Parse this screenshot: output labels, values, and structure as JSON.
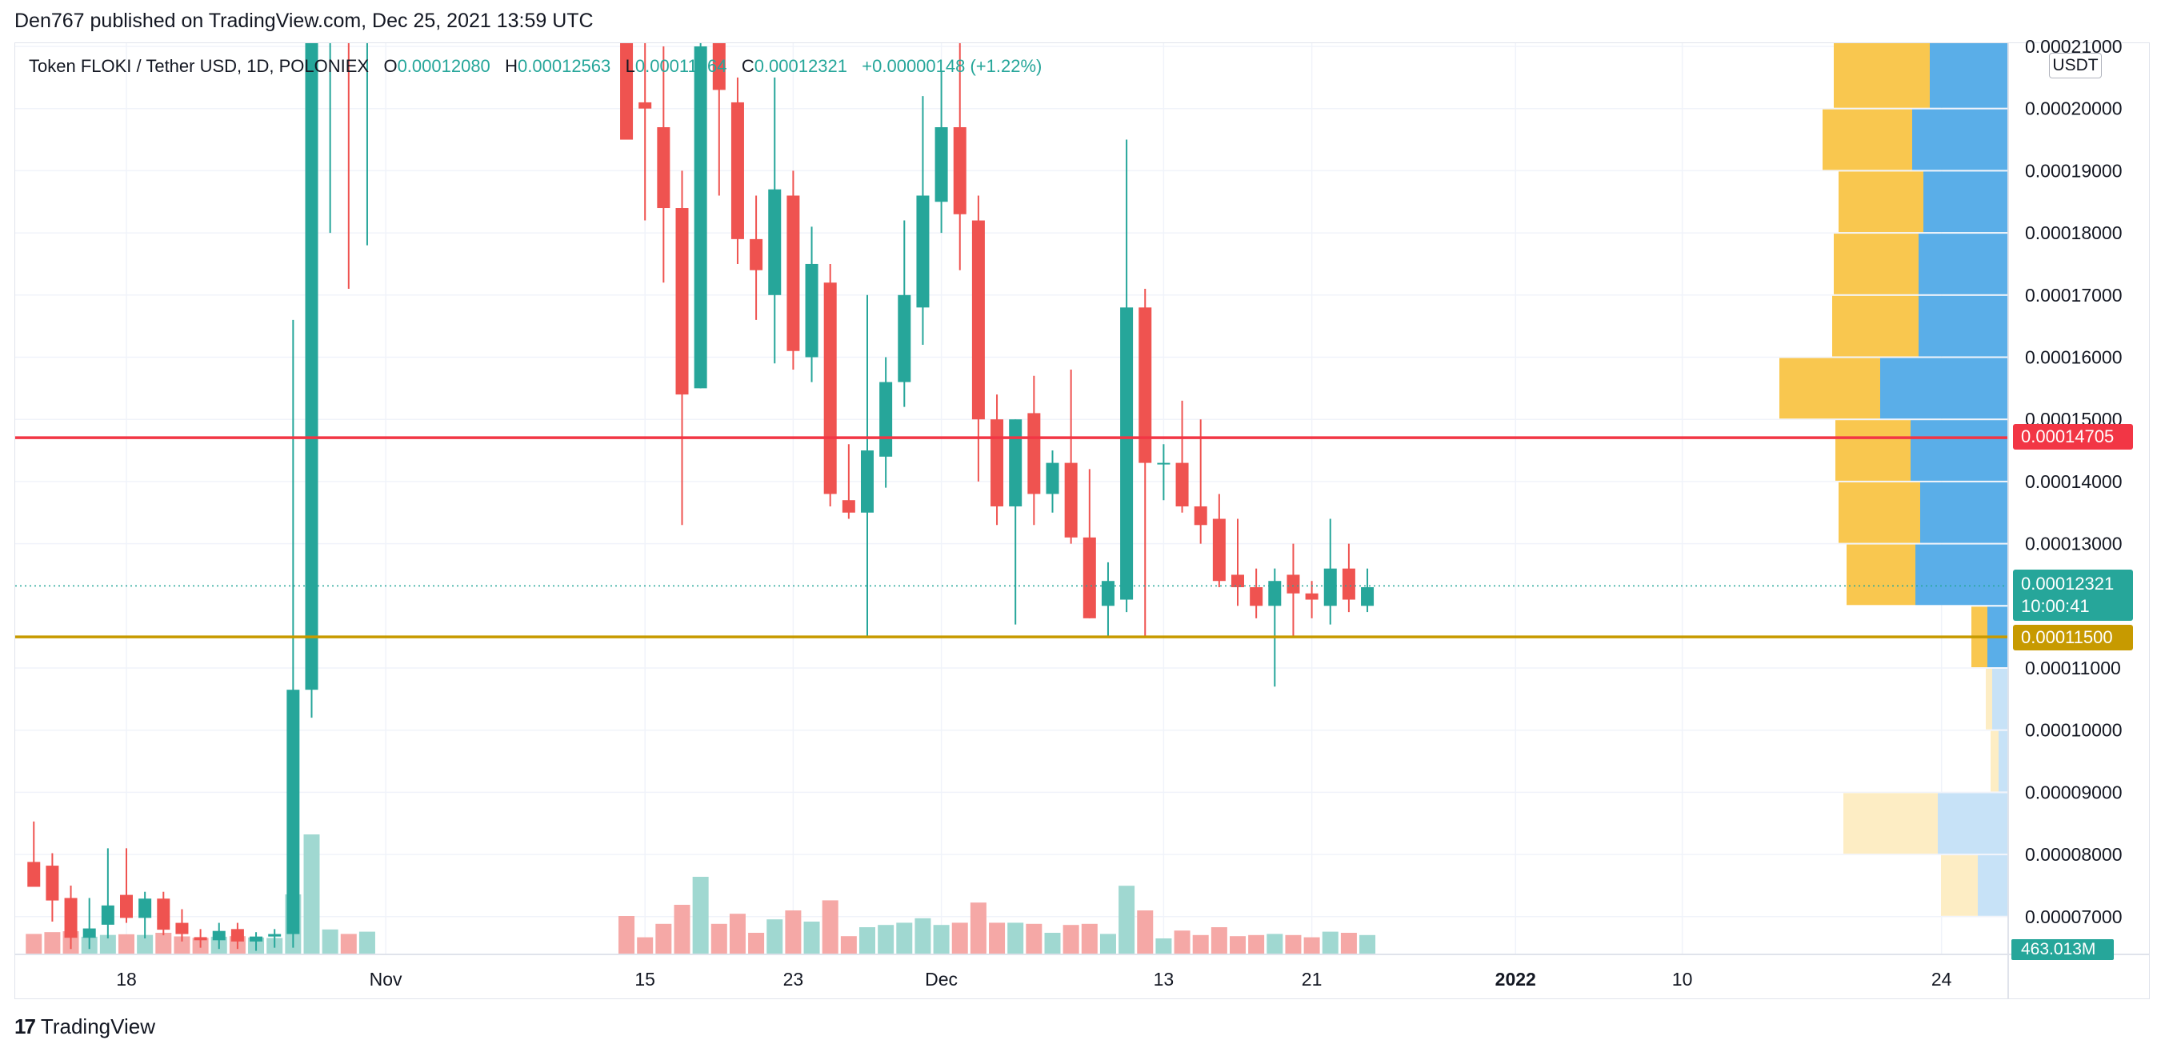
{
  "publisher": "Den767 published on TradingView.com, Dec 25, 2021 13:59 UTC",
  "brand": {
    "logo": "17",
    "name": "TradingView"
  },
  "legend": {
    "symbol": "Token FLOKI / Tether USD, 1D, POLONIEX",
    "o_label": "O",
    "o": "0.00012080",
    "h_label": "H",
    "h": "0.00012563",
    "l_label": "L",
    "l": "0.00011864",
    "c_label": "C",
    "c": "0.00012321",
    "change": "+0.00000148 (+1.22%)"
  },
  "colors": {
    "up": "#26a69a",
    "down": "#ef5350",
    "red_line": "#f23645",
    "orange_line": "#c79a00",
    "vp_up": "#f9c74f",
    "vp_down": "#5aaee8"
  },
  "price_tags": {
    "current_price": "0.00012321",
    "countdown": "10:00:41",
    "red_level": "0.00014705",
    "orange_level": "0.00011500",
    "volume": "463.013M",
    "currency": "USDT"
  },
  "chart_data": {
    "type": "candlestick",
    "title": "",
    "y_axis_labels": [
      "0.00021000",
      "0.00020000",
      "0.00019000",
      "0.00018000",
      "0.00017000",
      "0.00016000",
      "0.00015000",
      "0.00014000",
      "0.00013000",
      "0.00011000",
      "0.00010000",
      "0.00009000",
      "0.00008000",
      "0.00007000"
    ],
    "y_axis_values": [
      0.00021,
      0.0002,
      0.00019,
      0.00018,
      0.00017,
      0.00016,
      0.00015,
      0.00014,
      0.00013,
      0.00011,
      0.0001,
      9e-05,
      8e-05,
      7e-05
    ],
    "ylim": [
      6.44e-05,
      0.00021
    ],
    "x_axis_labels": [
      {
        "label": "18",
        "day": 0
      },
      {
        "label": "Nov",
        "day": 14
      },
      {
        "label": "15",
        "day": 28
      },
      {
        "label": "23",
        "day": 36
      },
      {
        "label": "Dec",
        "day": 44
      },
      {
        "label": "13",
        "day": 56
      },
      {
        "label": "21",
        "day": 64
      },
      {
        "label": "2022",
        "day": 75
      },
      {
        "label": "10",
        "day": 84
      },
      {
        "label": "24",
        "day": 98
      }
    ],
    "horizontal_lines": [
      {
        "value": 0.00014705,
        "color": "#f23645"
      },
      {
        "value": 0.000115,
        "color": "#c79a00"
      },
      {
        "value": 0.00012321,
        "color": "#26a69a",
        "dotted": true
      }
    ],
    "candles": [
      {
        "d": -5,
        "o": 7.88e-05,
        "h": 8.53e-05,
        "l": 7.62e-05,
        "c": 7.48e-05
      },
      {
        "d": -4,
        "o": 7.82e-05,
        "h": 8.02e-05,
        "l": 6.92e-05,
        "c": 7.26e-05
      },
      {
        "d": -3,
        "o": 7.3e-05,
        "h": 7.5e-05,
        "l": 6.48e-05,
        "c": 6.66e-05
      },
      {
        "d": -2,
        "o": 6.66e-05,
        "h": 7.3e-05,
        "l": 6.48e-05,
        "c": 6.81e-05
      },
      {
        "d": -1,
        "o": 6.87e-05,
        "h": 8.1e-05,
        "l": 6.65e-05,
        "c": 7.18e-05
      },
      {
        "d": 0,
        "o": 7.35e-05,
        "h": 8.1e-05,
        "l": 6.9e-05,
        "c": 6.98e-05
      },
      {
        "d": 1,
        "o": 6.98e-05,
        "h": 7.4e-05,
        "l": 6.65e-05,
        "c": 7.29e-05
      },
      {
        "d": 2,
        "o": 7.29e-05,
        "h": 7.4e-05,
        "l": 6.7e-05,
        "c": 6.79e-05
      },
      {
        "d": 3,
        "o": 6.9e-05,
        "h": 7.12e-05,
        "l": 6.6e-05,
        "c": 6.72e-05
      },
      {
        "d": 4,
        "o": 6.67e-05,
        "h": 6.8e-05,
        "l": 6.5e-05,
        "c": 6.62e-05
      },
      {
        "d": 5,
        "o": 6.62e-05,
        "h": 6.9e-05,
        "l": 6.48e-05,
        "c": 6.77e-05
      },
      {
        "d": 6,
        "o": 6.8e-05,
        "h": 6.9e-05,
        "l": 6.48e-05,
        "c": 6.6e-05
      },
      {
        "d": 7,
        "o": 6.6e-05,
        "h": 6.75e-05,
        "l": 6.45e-05,
        "c": 6.68e-05
      },
      {
        "d": 8,
        "o": 6.68e-05,
        "h": 6.8e-05,
        "l": 6.5e-05,
        "c": 6.72e-05
      },
      {
        "d": 9,
        "o": 6.72e-05,
        "h": 0.000166,
        "l": 6.5e-05,
        "c": 0.0001065
      },
      {
        "d": 10,
        "o": 0.0001065,
        "h": 0.00023,
        "l": 0.000102,
        "c": 0.000219
      },
      {
        "d": 11,
        "o": 0.000214,
        "h": 0.000226,
        "l": 0.00018,
        "c": 0.000222
      },
      {
        "d": 12,
        "o": 0.000222,
        "h": 0.000228,
        "l": 0.000171,
        "c": 0.000218
      },
      {
        "d": 13,
        "o": 0.000212,
        "h": 0.000226,
        "l": 0.000178,
        "c": 0.000218
      },
      {
        "d": 27,
        "o": 0.000215,
        "h": 0.000225,
        "l": 0.000195,
        "c": 0.000195
      },
      {
        "d": 28,
        "o": 0.000201,
        "h": 0.000214,
        "l": 0.000182,
        "c": 0.0002
      },
      {
        "d": 29,
        "o": 0.000197,
        "h": 0.00021,
        "l": 0.000172,
        "c": 0.000184
      },
      {
        "d": 30,
        "o": 0.000184,
        "h": 0.00019,
        "l": 0.000133,
        "c": 0.000154
      },
      {
        "d": 31,
        "o": 0.000155,
        "h": 0.000212,
        "l": 0.000155,
        "c": 0.00021
      },
      {
        "d": 32,
        "o": 0.000216,
        "h": 0.00022,
        "l": 0.000186,
        "c": 0.000203
      },
      {
        "d": 33,
        "o": 0.000201,
        "h": 0.000205,
        "l": 0.000175,
        "c": 0.000179
      },
      {
        "d": 34,
        "o": 0.000179,
        "h": 0.000186,
        "l": 0.000166,
        "c": 0.000174
      },
      {
        "d": 35,
        "o": 0.00017,
        "h": 0.000205,
        "l": 0.000159,
        "c": 0.000187
      },
      {
        "d": 36,
        "o": 0.000186,
        "h": 0.00019,
        "l": 0.000158,
        "c": 0.000161
      },
      {
        "d": 37,
        "o": 0.00016,
        "h": 0.000181,
        "l": 0.000156,
        "c": 0.000175
      },
      {
        "d": 38,
        "o": 0.000172,
        "h": 0.000175,
        "l": 0.000136,
        "c": 0.000138
      },
      {
        "d": 39,
        "o": 0.000137,
        "h": 0.000146,
        "l": 0.000134,
        "c": 0.000135
      },
      {
        "d": 40,
        "o": 0.000135,
        "h": 0.00017,
        "l": 0.000115,
        "c": 0.000145
      },
      {
        "d": 41,
        "o": 0.000144,
        "h": 0.00016,
        "l": 0.000139,
        "c": 0.000156
      },
      {
        "d": 42,
        "o": 0.000156,
        "h": 0.000182,
        "l": 0.000152,
        "c": 0.00017
      },
      {
        "d": 43,
        "o": 0.000168,
        "h": 0.000202,
        "l": 0.000162,
        "c": 0.000186
      },
      {
        "d": 44,
        "o": 0.000185,
        "h": 0.000206,
        "l": 0.00018,
        "c": 0.000197
      },
      {
        "d": 45,
        "o": 0.000197,
        "h": 0.000213,
        "l": 0.000174,
        "c": 0.000183
      },
      {
        "d": 46,
        "o": 0.000182,
        "h": 0.000186,
        "l": 0.00014,
        "c": 0.00015
      },
      {
        "d": 47,
        "o": 0.00015,
        "h": 0.000154,
        "l": 0.000133,
        "c": 0.000136
      },
      {
        "d": 48,
        "o": 0.000136,
        "h": 0.00015,
        "l": 0.000117,
        "c": 0.00015
      },
      {
        "d": 49,
        "o": 0.000151,
        "h": 0.000157,
        "l": 0.000133,
        "c": 0.000138
      },
      {
        "d": 50,
        "o": 0.000138,
        "h": 0.000145,
        "l": 0.000135,
        "c": 0.000143
      },
      {
        "d": 51,
        "o": 0.000143,
        "h": 0.000158,
        "l": 0.00013,
        "c": 0.000131
      },
      {
        "d": 52,
        "o": 0.000131,
        "h": 0.000142,
        "l": 0.000118,
        "c": 0.000118
      },
      {
        "d": 53,
        "o": 0.00012,
        "h": 0.000127,
        "l": 0.000115,
        "c": 0.000124
      },
      {
        "d": 54,
        "o": 0.000121,
        "h": 0.000195,
        "l": 0.000119,
        "c": 0.000168
      },
      {
        "d": 55,
        "o": 0.000168,
        "h": 0.000171,
        "l": 0.000115,
        "c": 0.000143
      },
      {
        "d": 56,
        "o": 0.000143,
        "h": 0.000146,
        "l": 0.000137,
        "c": 0.000143
      },
      {
        "d": 57,
        "o": 0.000143,
        "h": 0.000153,
        "l": 0.000135,
        "c": 0.000136
      },
      {
        "d": 58,
        "o": 0.000136,
        "h": 0.00015,
        "l": 0.00013,
        "c": 0.000133
      },
      {
        "d": 59,
        "o": 0.000134,
        "h": 0.000138,
        "l": 0.000123,
        "c": 0.000124
      },
      {
        "d": 60,
        "o": 0.000125,
        "h": 0.000134,
        "l": 0.00012,
        "c": 0.000123
      },
      {
        "d": 61,
        "o": 0.000123,
        "h": 0.000126,
        "l": 0.000118,
        "c": 0.00012
      },
      {
        "d": 62,
        "o": 0.00012,
        "h": 0.000126,
        "l": 0.000107,
        "c": 0.000124
      },
      {
        "d": 63,
        "o": 0.000125,
        "h": 0.00013,
        "l": 0.000115,
        "c": 0.000122
      },
      {
        "d": 64,
        "o": 0.000122,
        "h": 0.000124,
        "l": 0.000118,
        "c": 0.000121
      },
      {
        "d": 65,
        "o": 0.00012,
        "h": 0.000134,
        "l": 0.000117,
        "c": 0.000126
      },
      {
        "d": 66,
        "o": 0.000126,
        "h": 0.00013,
        "l": 0.000119,
        "c": 0.000121
      },
      {
        "d": 67,
        "o": 0.00012,
        "h": 0.000126,
        "l": 0.000119,
        "c": 0.000123
      }
    ],
    "volume_profile": [
      {
        "low": 0.0002,
        "high": 0.000215,
        "up": 0.6,
        "down": 0.49
      },
      {
        "low": 0.00019,
        "high": 0.0002,
        "up": 0.56,
        "down": 0.6
      },
      {
        "low": 0.00018,
        "high": 0.00019,
        "up": 0.53,
        "down": 0.53
      },
      {
        "low": 0.00017,
        "high": 0.00018,
        "up": 0.53,
        "down": 0.56
      },
      {
        "low": 0.00016,
        "high": 0.00017,
        "up": 0.54,
        "down": 0.56
      },
      {
        "low": 0.00015,
        "high": 0.00016,
        "up": 0.63,
        "down": 0.8
      },
      {
        "low": 0.00014,
        "high": 0.00015,
        "up": 0.47,
        "down": 0.61
      },
      {
        "low": 0.00013,
        "high": 0.00014,
        "up": 0.51,
        "down": 0.55
      },
      {
        "low": 0.00012,
        "high": 0.00013,
        "up": 0.43,
        "down": 0.58
      },
      {
        "low": 0.00011,
        "high": 0.00012,
        "up": 0.1,
        "down": 0.13
      },
      {
        "low": 0.0001,
        "high": 0.00011,
        "up": 0.04,
        "down": 0.1
      },
      {
        "low": 9e-05,
        "high": 0.0001,
        "up": 0.05,
        "down": 0.06
      },
      {
        "low": 8e-05,
        "high": 9e-05,
        "up": 0.59,
        "down": 0.44
      },
      {
        "low": 7e-05,
        "high": 8e-05,
        "up": 0.23,
        "down": 0.19
      }
    ],
    "volume_scale": 1.0
  }
}
